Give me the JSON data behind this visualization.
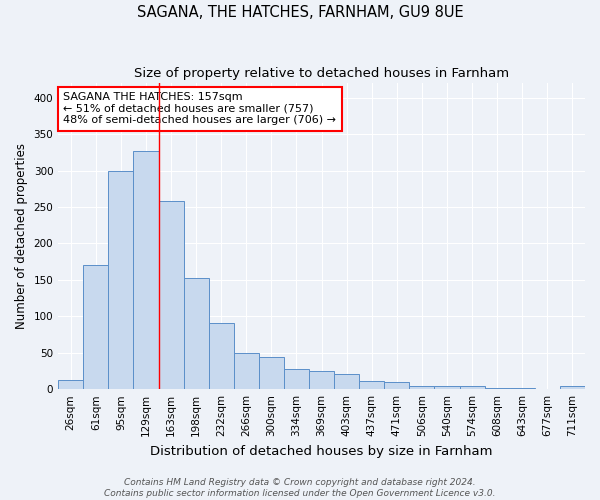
{
  "title": "SAGANA, THE HATCHES, FARNHAM, GU9 8UE",
  "subtitle": "Size of property relative to detached houses in Farnham",
  "xlabel": "Distribution of detached houses by size in Farnham",
  "ylabel": "Number of detached properties",
  "categories": [
    "26sqm",
    "61sqm",
    "95sqm",
    "129sqm",
    "163sqm",
    "198sqm",
    "232sqm",
    "266sqm",
    "300sqm",
    "334sqm",
    "369sqm",
    "403sqm",
    "437sqm",
    "471sqm",
    "506sqm",
    "540sqm",
    "574sqm",
    "608sqm",
    "643sqm",
    "677sqm",
    "711sqm"
  ],
  "values": [
    13,
    170,
    300,
    327,
    258,
    152,
    91,
    50,
    44,
    28,
    25,
    21,
    11,
    10,
    4,
    4,
    4,
    1,
    1,
    0,
    4
  ],
  "bar_color": "#c8d9ee",
  "bar_edge_color": "#5b8fc9",
  "red_line_index": 4,
  "annotation_text": "SAGANA THE HATCHES: 157sqm\n← 51% of detached houses are smaller (757)\n48% of semi-detached houses are larger (706) →",
  "annotation_box_color": "white",
  "annotation_box_edge_color": "red",
  "footer_line1": "Contains HM Land Registry data © Crown copyright and database right 2024.",
  "footer_line2": "Contains public sector information licensed under the Open Government Licence v3.0.",
  "ylim": [
    0,
    420
  ],
  "yticks": [
    0,
    50,
    100,
    150,
    200,
    250,
    300,
    350,
    400
  ],
  "background_color": "#eef2f8",
  "grid_color": "#ffffff",
  "title_fontsize": 10.5,
  "subtitle_fontsize": 9.5,
  "xlabel_fontsize": 9.5,
  "ylabel_fontsize": 8.5,
  "tick_fontsize": 7.5,
  "annotation_fontsize": 8,
  "footer_fontsize": 6.5
}
